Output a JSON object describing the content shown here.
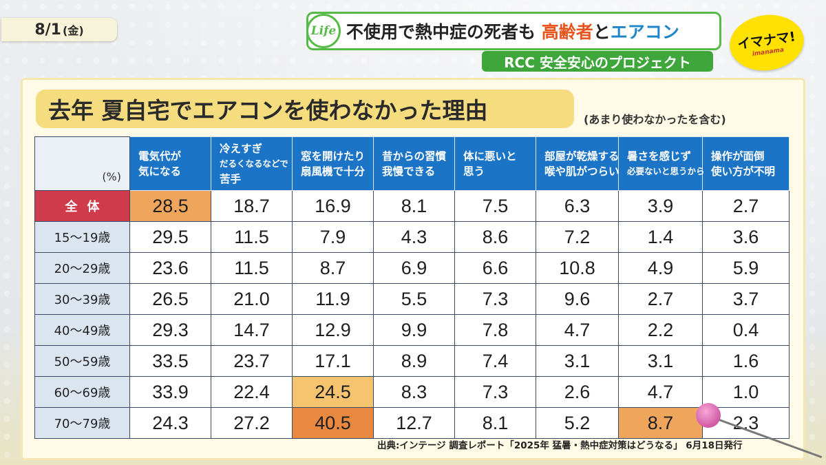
{
  "date": {
    "day": "8/1",
    "weekday": "(金)"
  },
  "headline": {
    "logo": "Life",
    "text_before": "不使用で熱中症の死者も",
    "highlight1": "高齢者",
    "mid": "と",
    "highlight2": "エアコン"
  },
  "project": "RCC 安全安心のプロジェクト",
  "show_logo": {
    "main": "イマナマ!",
    "sub": "imanama"
  },
  "board": {
    "title": "去年 夏自宅でエアコンを使わなかった理由",
    "note": "(あまり使わなかったを含む)",
    "unit": "(%)",
    "source": "出典:インテージ 調査レポート「2025年 猛暑・熱中症対策はどうなる」 6月18日発行"
  },
  "chart_data": {
    "type": "table",
    "title": "去年 夏自宅でエアコンを使わなかった理由",
    "subtitle": "(あまり使わなかったを含む)",
    "unit": "(%)",
    "columns": [
      {
        "line1": "電気代が",
        "line2": "気になる"
      },
      {
        "line1": "冷えすぎ",
        "line2": "だるくなるなどで",
        "line3": "苦手"
      },
      {
        "line1": "窓を開けたり",
        "line2": "扇風機で十分"
      },
      {
        "line1": "昔からの習慣",
        "line2": "我慢できる"
      },
      {
        "line1": "体に悪いと",
        "line2": "思う"
      },
      {
        "line1": "部屋が乾燥する",
        "line2": "喉や肌がつらい"
      },
      {
        "line1": "暑さを感じず",
        "line2": "必要ないと思うから"
      },
      {
        "line1": "操作が面倒",
        "line2": "使い方が不明"
      }
    ],
    "rows": [
      {
        "label": "全体",
        "values": [
          "28.5",
          "18.7",
          "16.9",
          "8.1",
          "7.5",
          "6.3",
          "3.9",
          "2.7"
        ]
      },
      {
        "label": "15〜19歳",
        "values": [
          "29.5",
          "11.5",
          "7.9",
          "4.3",
          "8.6",
          "7.2",
          "1.4",
          "3.6"
        ]
      },
      {
        "label": "20〜29歳",
        "values": [
          "23.6",
          "11.5",
          "8.7",
          "6.9",
          "6.6",
          "10.8",
          "4.9",
          "5.9"
        ]
      },
      {
        "label": "30〜39歳",
        "values": [
          "26.5",
          "21.0",
          "11.9",
          "5.5",
          "7.3",
          "9.6",
          "2.7",
          "3.7"
        ]
      },
      {
        "label": "40〜49歳",
        "values": [
          "29.3",
          "14.7",
          "12.9",
          "9.9",
          "7.8",
          "4.7",
          "2.2",
          "0.4"
        ]
      },
      {
        "label": "50〜59歳",
        "values": [
          "33.5",
          "23.7",
          "17.1",
          "8.9",
          "7.4",
          "3.1",
          "3.1",
          "1.6"
        ]
      },
      {
        "label": "60〜69歳",
        "values": [
          "33.9",
          "22.4",
          "24.5",
          "8.3",
          "7.3",
          "2.6",
          "4.7",
          "1.0"
        ]
      },
      {
        "label": "70〜79歳",
        "values": [
          "24.3",
          "27.2",
          "40.5",
          "12.7",
          "8.1",
          "5.2",
          "8.7",
          "2.3"
        ]
      }
    ],
    "highlighted_cells": [
      {
        "row": 0,
        "col": 0,
        "color": "#f0a55c"
      },
      {
        "row": 6,
        "col": 2,
        "color": "#f6c36e"
      },
      {
        "row": 7,
        "col": 2,
        "color": "#e8893f"
      },
      {
        "row": 7,
        "col": 6,
        "color": "#f0a55c"
      }
    ]
  },
  "colors": {
    "header_blue": "#1b74c5",
    "overall_red": "#cf3b4b",
    "accent_green": "#3ea63b",
    "title_yellow": "#f5dc7e"
  }
}
